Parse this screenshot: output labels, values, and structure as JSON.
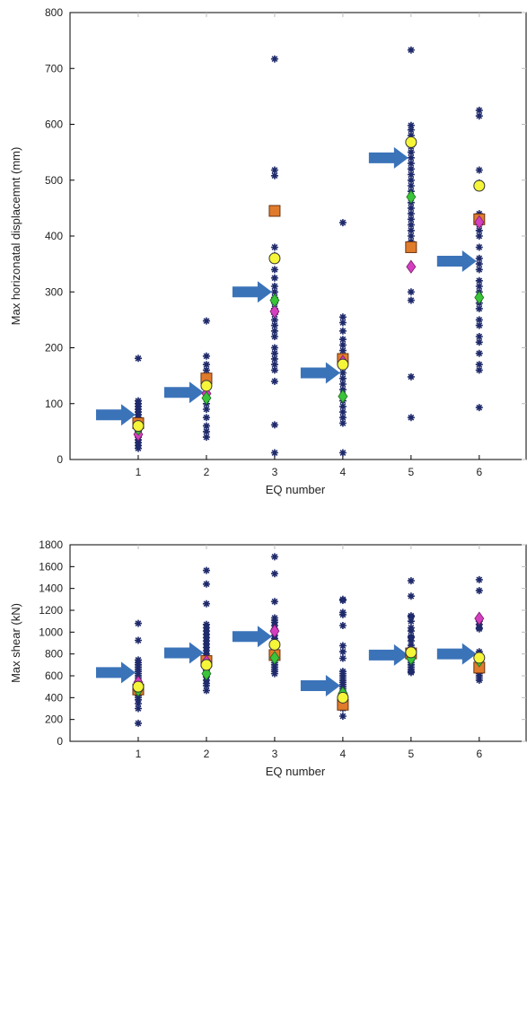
{
  "colors": {
    "star": "#1f2a6b",
    "mean_circle": "#f5f53a",
    "square": "#e07b2c",
    "diamond_magenta": "#d43fbf",
    "diamond_green": "#3ac43a",
    "arrow": "#3b73b9",
    "axis": "#000000"
  },
  "chart_data": [
    {
      "type": "scatter",
      "xlabel": "EQ number",
      "ylabel": "Max horizonatal displacemnt (mm)",
      "xlim": [
        0,
        6.7
      ],
      "ylim": [
        0,
        800
      ],
      "xticks": [
        1,
        2,
        3,
        4,
        5,
        6
      ],
      "yticks": [
        0,
        100,
        200,
        300,
        400,
        500,
        600,
        700,
        800
      ],
      "grid": false,
      "stars": [
        {
          "x": 1,
          "values": [
            181,
            105,
            100,
            95,
            90,
            85,
            80,
            75,
            70,
            65,
            60,
            55,
            50,
            45,
            40,
            35,
            30,
            25,
            20
          ]
        },
        {
          "x": 2,
          "values": [
            248,
            185,
            170,
            160,
            150,
            140,
            130,
            120,
            110,
            100,
            90,
            75,
            60,
            50,
            40
          ]
        },
        {
          "x": 3,
          "values": [
            717,
            518,
            508,
            380,
            365,
            340,
            325,
            310,
            300,
            290,
            280,
            270,
            260,
            250,
            240,
            230,
            220,
            200,
            190,
            180,
            170,
            160,
            140,
            62,
            12
          ]
        },
        {
          "x": 4,
          "values": [
            424,
            255,
            245,
            230,
            215,
            205,
            195,
            185,
            175,
            165,
            155,
            145,
            135,
            125,
            115,
            105,
            95,
            85,
            75,
            65,
            12
          ]
        },
        {
          "x": 5,
          "values": [
            733,
            598,
            590,
            580,
            570,
            560,
            550,
            540,
            530,
            520,
            510,
            500,
            490,
            480,
            470,
            460,
            450,
            440,
            430,
            420,
            410,
            400,
            390,
            300,
            285,
            148,
            75
          ]
        },
        {
          "x": 6,
          "values": [
            625,
            615,
            518,
            495,
            440,
            430,
            420,
            410,
            400,
            380,
            360,
            350,
            340,
            320,
            310,
            300,
            290,
            280,
            270,
            250,
            240,
            220,
            210,
            190,
            170,
            160,
            93
          ]
        }
      ],
      "markers": {
        "square": [
          [
            1,
            65
          ],
          [
            2,
            145
          ],
          [
            3,
            445
          ],
          [
            4,
            180
          ],
          [
            5,
            380
          ],
          [
            6,
            430
          ]
        ],
        "circle": [
          [
            1,
            60
          ],
          [
            2,
            132
          ],
          [
            3,
            360
          ],
          [
            4,
            170
          ],
          [
            5,
            568
          ],
          [
            6,
            490
          ]
        ],
        "diamond_magenta": [
          [
            1,
            45
          ],
          [
            2,
            118
          ],
          [
            3,
            265
          ],
          [
            4,
            175
          ],
          [
            5,
            345
          ],
          [
            6,
            425
          ]
        ],
        "diamond_green": [
          [
            1,
            55
          ],
          [
            2,
            110
          ],
          [
            3,
            285
          ],
          [
            4,
            113
          ],
          [
            5,
            470
          ],
          [
            6,
            290
          ]
        ]
      },
      "arrows": [
        [
          1,
          80
        ],
        [
          2,
          120
        ],
        [
          3,
          300
        ],
        [
          4,
          155
        ],
        [
          5,
          540
        ],
        [
          6,
          355
        ]
      ]
    },
    {
      "type": "scatter",
      "xlabel": "EQ number",
      "ylabel": "Max shear (kN)",
      "xlim": [
        0,
        6.7
      ],
      "ylim": [
        0,
        1800
      ],
      "xticks": [
        1,
        2,
        3,
        4,
        5,
        6
      ],
      "yticks": [
        0,
        200,
        400,
        600,
        800,
        1000,
        1200,
        1400,
        1600,
        1800
      ],
      "grid": false,
      "stars": [
        {
          "x": 1,
          "values": [
            1080,
            925,
            745,
            720,
            700,
            680,
            660,
            640,
            620,
            600,
            580,
            560,
            540,
            520,
            500,
            480,
            460,
            440,
            420,
            400,
            380,
            345,
            300,
            165
          ]
        },
        {
          "x": 2,
          "values": [
            1565,
            1440,
            1260,
            1070,
            1040,
            1010,
            980,
            950,
            920,
            890,
            860,
            830,
            800,
            770,
            740,
            710,
            680,
            650,
            620,
            590,
            560,
            530,
            510,
            465
          ]
        },
        {
          "x": 3,
          "values": [
            1690,
            1535,
            1280,
            1130,
            1110,
            1090,
            1060,
            1030,
            1000,
            970,
            940,
            910,
            880,
            850,
            820,
            790,
            760,
            740,
            720,
            700,
            680,
            660,
            640,
            620
          ]
        },
        {
          "x": 4,
          "values": [
            1300,
            1290,
            1180,
            1160,
            1060,
            875,
            820,
            760,
            640,
            620,
            600,
            580,
            560,
            540,
            520,
            500,
            480,
            460,
            440,
            420,
            400,
            380,
            360,
            300,
            230
          ]
        },
        {
          "x": 5,
          "values": [
            1470,
            1330,
            1150,
            1140,
            1100,
            1040,
            1010,
            960,
            950,
            920,
            880,
            860,
            840,
            820,
            800,
            780,
            760,
            740,
            720,
            700,
            680,
            660,
            640,
            630
          ]
        },
        {
          "x": 6,
          "values": [
            1480,
            1380,
            1100,
            1070,
            1040,
            1030,
            820,
            800,
            780,
            760,
            740,
            720,
            700,
            680,
            660,
            640,
            620,
            600,
            580,
            560
          ]
        }
      ],
      "markers": {
        "square": [
          [
            1,
            475
          ],
          [
            2,
            735
          ],
          [
            3,
            790
          ],
          [
            4,
            335
          ],
          [
            5,
            805
          ],
          [
            6,
            675
          ]
        ],
        "circle": [
          [
            1,
            500
          ],
          [
            2,
            700
          ],
          [
            3,
            885
          ],
          [
            4,
            400
          ],
          [
            5,
            815
          ],
          [
            6,
            765
          ]
        ],
        "diamond_magenta": [
          [
            1,
            540
          ],
          [
            2,
            730
          ],
          [
            3,
            1010
          ],
          [
            4,
            430
          ],
          [
            5,
            815
          ],
          [
            6,
            1125
          ]
        ],
        "diamond_green": [
          [
            1,
            470
          ],
          [
            2,
            620
          ],
          [
            3,
            765
          ],
          [
            4,
            440
          ],
          [
            5,
            760
          ],
          [
            6,
            740
          ]
        ]
      },
      "arrows": [
        [
          1,
          630
        ],
        [
          2,
          810
        ],
        [
          3,
          960
        ],
        [
          4,
          510
        ],
        [
          5,
          790
        ],
        [
          6,
          800
        ]
      ]
    }
  ]
}
